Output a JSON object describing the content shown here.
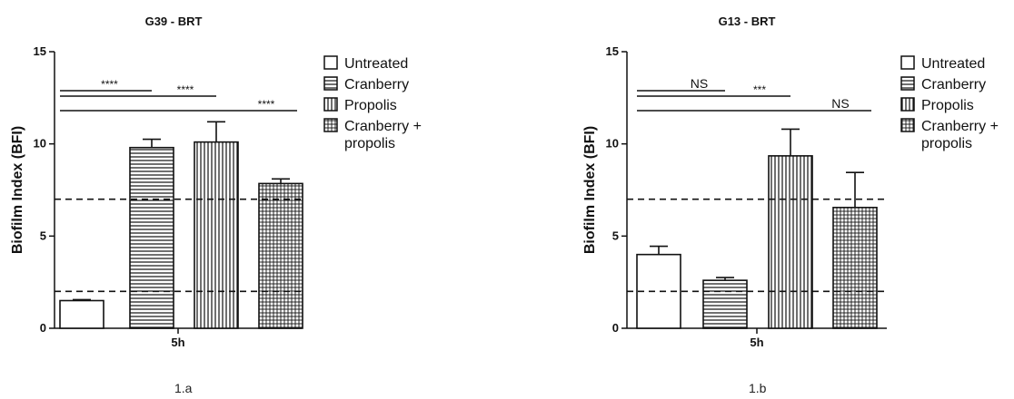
{
  "chart_data": [
    {
      "type": "bar",
      "title": "G39 - BRT",
      "ylabel": "Biofilm Index (BFI)",
      "xlabel": "5h",
      "ylim": [
        0,
        15
      ],
      "yticks": [
        "0",
        "5",
        "10",
        "15"
      ],
      "categories": [
        "Untreated",
        "Cranberry",
        "Propolis",
        "Cranberry + propolis"
      ],
      "legend": [
        "Untreated",
        "Cranberry",
        "Propolis",
        "Cranberry +",
        "propolis"
      ],
      "legend_position": "right",
      "values": [
        1.5,
        9.8,
        10.1,
        7.85
      ],
      "errors": [
        0.05,
        0.45,
        1.1,
        0.25
      ],
      "reference_lines": [
        2.0,
        7.0
      ],
      "significance": [
        {
          "from": 0,
          "to": 1,
          "label": "****"
        },
        {
          "from": 0,
          "to": 2,
          "label": "****"
        },
        {
          "from": 0,
          "to": 3,
          "label": "****"
        }
      ],
      "caption": "1.a"
    },
    {
      "type": "bar",
      "title": "G13 - BRT",
      "ylabel": "Biofilm Index (BFI)",
      "xlabel": "5h",
      "ylim": [
        0,
        15
      ],
      "yticks": [
        "0",
        "5",
        "10",
        "15"
      ],
      "categories": [
        "Untreated",
        "Cranberry",
        "Propolis",
        "Cranberry + propolis"
      ],
      "legend": [
        "Untreated",
        "Cranberry",
        "Propolis",
        "Cranberry +",
        "propolis"
      ],
      "legend_position": "right",
      "values": [
        4.0,
        2.6,
        9.35,
        6.55
      ],
      "errors": [
        0.45,
        0.15,
        1.45,
        1.9
      ],
      "reference_lines": [
        2.0,
        7.0
      ],
      "significance": [
        {
          "from": 0,
          "to": 1,
          "label": "NS"
        },
        {
          "from": 0,
          "to": 2,
          "label": "***"
        },
        {
          "from": 0,
          "to": 3,
          "label": "NS"
        }
      ],
      "caption": "1.b"
    }
  ],
  "colors": {
    "ink": "#111111",
    "bar_fill": "#ffffff"
  },
  "patterns": [
    "none",
    "horizontal-lines",
    "vertical-lines",
    "grid"
  ]
}
